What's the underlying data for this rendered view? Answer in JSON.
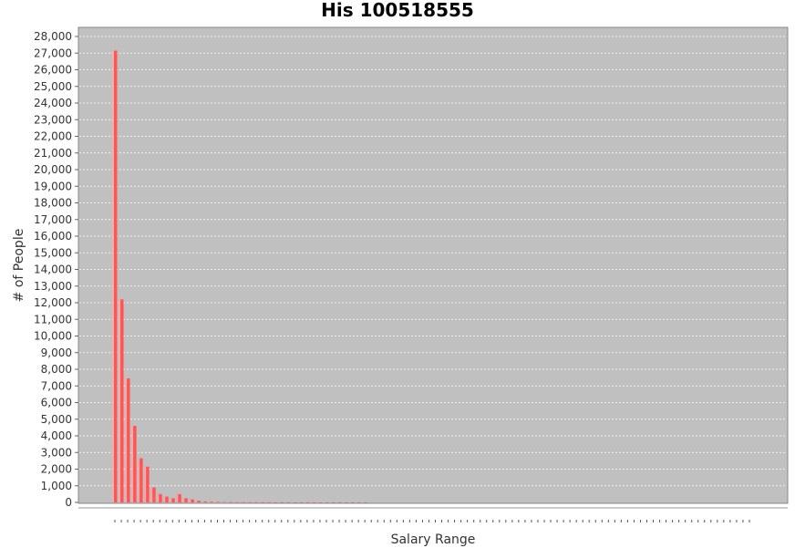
{
  "chart_data": {
    "type": "bar",
    "title": "His 100518555",
    "xlabel": "Salary Range",
    "ylabel": "# of People",
    "ylim": [
      0,
      28000
    ],
    "ytick_step": 1000,
    "grid": true,
    "legend": "none",
    "colors": {
      "bar": "#ff5555",
      "bar_highlight": "#ffaaaa",
      "plot_background": "#c0c0c0",
      "gridline": "#ffffff"
    },
    "values": [
      27150,
      12200,
      7450,
      4600,
      2650,
      2150,
      900,
      500,
      350,
      250,
      500,
      250,
      180,
      100,
      60,
      40,
      30,
      25,
      20,
      15,
      12,
      10,
      8,
      6,
      5,
      4,
      3,
      3,
      2,
      2,
      2,
      1,
      1,
      1,
      1,
      1,
      1,
      1,
      1,
      1,
      0,
      0,
      0,
      0,
      0,
      0,
      0,
      0,
      0,
      0,
      0,
      0,
      0,
      0,
      0,
      0,
      0,
      0,
      0,
      0,
      0,
      0,
      0,
      0,
      0,
      0,
      0,
      0,
      0,
      0,
      0,
      0,
      0,
      0,
      0,
      0,
      0,
      0,
      0,
      0,
      0,
      0,
      0,
      0,
      0,
      0,
      0,
      0,
      0,
      0,
      0,
      0,
      0,
      0,
      0,
      0,
      0,
      0,
      0,
      0
    ]
  }
}
